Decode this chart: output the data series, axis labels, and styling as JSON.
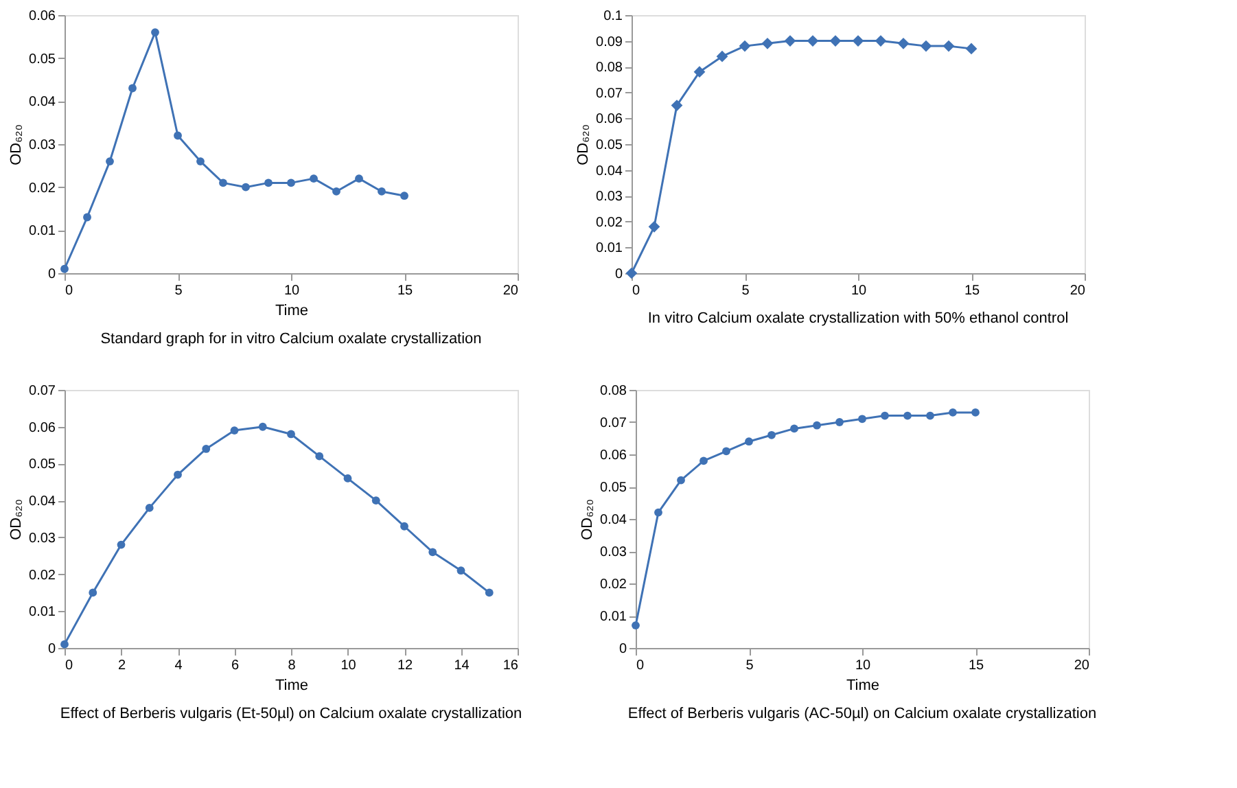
{
  "chart_data": [
    {
      "type": "line",
      "title": "Standard graph for in vitro Calcium oxalate crystallization",
      "xlabel": "Time",
      "ylabel": "OD₆₂₀",
      "x": [
        0,
        1,
        2,
        3,
        4,
        5,
        6,
        7,
        8,
        9,
        10,
        11,
        12,
        13,
        14,
        15
      ],
      "series": [
        {
          "color": "#3f72b5",
          "values": [
            0.001,
            0.013,
            0.026,
            0.043,
            0.056,
            0.032,
            0.026,
            0.021,
            0.02,
            0.021,
            0.021,
            0.022,
            0.019,
            0.022,
            0.019,
            0.018
          ]
        }
      ],
      "xlim": [
        0,
        20
      ],
      "xticks": [
        0,
        5,
        10,
        15,
        20
      ],
      "ylim": [
        0,
        0.06
      ],
      "yticks": [
        0,
        0.01,
        0.02,
        0.03,
        0.04,
        0.05,
        0.06
      ],
      "marker": "circle",
      "grid": false
    },
    {
      "type": "line",
      "title": "In vitro Calcium oxalate crystallization with 50% ethanol control",
      "ylabel": "OD₆₂₀",
      "x": [
        0,
        1,
        2,
        3,
        4,
        5,
        6,
        7,
        8,
        9,
        10,
        11,
        12,
        13,
        14,
        15
      ],
      "series": [
        {
          "color": "#3f72b5",
          "values": [
            0,
            0.018,
            0.065,
            0.078,
            0.084,
            0.088,
            0.089,
            0.09,
            0.09,
            0.09,
            0.09,
            0.09,
            0.089,
            0.088,
            0.088,
            0.087
          ]
        }
      ],
      "xlim": [
        0,
        20
      ],
      "xticks": [
        0,
        5,
        10,
        15,
        20
      ],
      "ylim": [
        0,
        0.1
      ],
      "yticks": [
        0,
        0.01,
        0.02,
        0.03,
        0.04,
        0.05,
        0.06,
        0.07,
        0.08,
        0.09,
        0.1
      ],
      "marker": "diamond",
      "grid": false
    },
    {
      "type": "line",
      "title": "Effect of Berberis vulgaris (Et-50µl) on Calcium oxalate crystallization",
      "xlabel": "Time",
      "ylabel": "OD₆₂₀",
      "x": [
        0,
        1,
        2,
        3,
        4,
        5,
        6,
        7,
        8,
        9,
        10,
        11,
        12,
        13,
        14,
        15
      ],
      "series": [
        {
          "color": "#3f72b5",
          "values": [
            0.001,
            0.015,
            0.028,
            0.038,
            0.047,
            0.054,
            0.059,
            0.06,
            0.058,
            0.052,
            0.046,
            0.04,
            0.033,
            0.026,
            0.021,
            0.015
          ]
        }
      ],
      "xlim": [
        0,
        16
      ],
      "xticks": [
        0,
        2,
        4,
        6,
        8,
        10,
        12,
        14,
        16
      ],
      "ylim": [
        0,
        0.07
      ],
      "yticks": [
        0,
        0.01,
        0.02,
        0.03,
        0.04,
        0.05,
        0.06,
        0.07
      ],
      "marker": "circle",
      "grid": false
    },
    {
      "type": "line",
      "title": "Effect of Berberis vulgaris (AC-50µl) on Calcium oxalate crystallization",
      "xlabel": "Time",
      "ylabel": "OD₆₂₀",
      "x": [
        0,
        1,
        2,
        3,
        4,
        5,
        6,
        7,
        8,
        9,
        10,
        11,
        12,
        13,
        14,
        15
      ],
      "series": [
        {
          "color": "#3f72b5",
          "values": [
            0.007,
            0.042,
            0.052,
            0.058,
            0.061,
            0.064,
            0.066,
            0.068,
            0.069,
            0.07,
            0.071,
            0.072,
            0.072,
            0.072,
            0.073,
            0.073
          ]
        }
      ],
      "xlim": [
        0,
        20
      ],
      "xticks": [
        0,
        5,
        10,
        15,
        20
      ],
      "ylim": [
        0,
        0.08
      ],
      "yticks": [
        0,
        0.01,
        0.02,
        0.03,
        0.04,
        0.05,
        0.06,
        0.07,
        0.08
      ],
      "marker": "circle",
      "grid": false
    }
  ]
}
